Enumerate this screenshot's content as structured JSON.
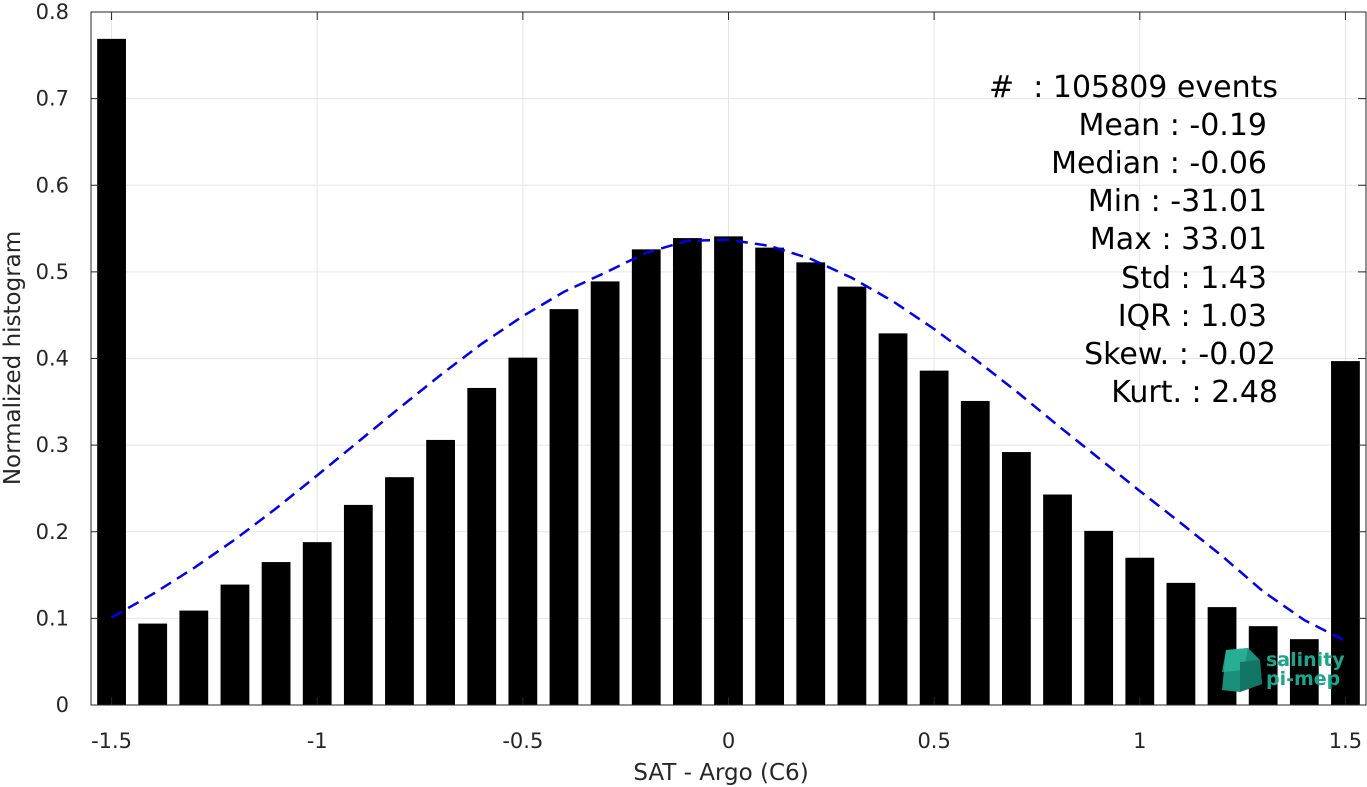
{
  "chart_data": {
    "type": "bar",
    "xlabel": "SAT - Argo (C6)",
    "ylabel": "Normalized histogram",
    "xlim": [
      -1.55,
      1.55
    ],
    "ylim": [
      0,
      0.8
    ],
    "grid": true,
    "x_ticks": [
      -1.5,
      -1,
      -0.5,
      0,
      0.5,
      1,
      1.5
    ],
    "x_tick_labels": [
      "-1.5",
      "-1",
      "-0.5",
      "0",
      "0.5",
      "1",
      "1.5"
    ],
    "y_ticks": [
      0,
      0.1,
      0.2,
      0.3,
      0.4,
      0.5,
      0.6,
      0.7,
      0.8
    ],
    "y_tick_labels": [
      "0",
      "0.1",
      "0.2",
      "0.3",
      "0.4",
      "0.5",
      "0.6",
      "0.7",
      "0.8"
    ],
    "bar_color": "#000000",
    "bars": {
      "x": [
        -1.5,
        -1.4,
        -1.3,
        -1.2,
        -1.1,
        -1.0,
        -0.9,
        -0.8,
        -0.7,
        -0.6,
        -0.5,
        -0.4,
        -0.3,
        -0.2,
        -0.1,
        0.0,
        0.1,
        0.2,
        0.3,
        0.4,
        0.5,
        0.6,
        0.7,
        0.8,
        0.9,
        1.0,
        1.1,
        1.2,
        1.3,
        1.4,
        1.5
      ],
      "values": [
        0.769,
        0.094,
        0.109,
        0.139,
        0.165,
        0.188,
        0.231,
        0.263,
        0.306,
        0.366,
        0.401,
        0.457,
        0.489,
        0.526,
        0.539,
        0.541,
        0.528,
        0.511,
        0.483,
        0.429,
        0.386,
        0.351,
        0.292,
        0.243,
        0.201,
        0.17,
        0.141,
        0.113,
        0.091,
        0.076,
        0.397
      ]
    },
    "fit_curve": {
      "style": "dashed",
      "color": "#0000ee",
      "x": [
        -1.5,
        -1.4,
        -1.3,
        -1.2,
        -1.1,
        -1.0,
        -0.9,
        -0.8,
        -0.7,
        -0.6,
        -0.5,
        -0.4,
        -0.3,
        -0.2,
        -0.1,
        0.0,
        0.1,
        0.2,
        0.3,
        0.4,
        0.5,
        0.6,
        0.7,
        0.8,
        0.9,
        1.0,
        1.1,
        1.2,
        1.3,
        1.4,
        1.5
      ],
      "y": [
        0.101,
        0.128,
        0.158,
        0.191,
        0.227,
        0.265,
        0.304,
        0.343,
        0.381,
        0.417,
        0.449,
        0.477,
        0.499,
        0.522,
        0.536,
        0.537,
        0.53,
        0.515,
        0.493,
        0.466,
        0.434,
        0.399,
        0.362,
        0.323,
        0.285,
        0.247,
        0.21,
        0.172,
        0.131,
        0.098,
        0.074
      ]
    },
    "stats": [
      "#  : 105809 events",
      "Mean : -0.19",
      "Median : -0.06",
      "Min : -31.01",
      "Max : 33.01",
      "Std : 1.43",
      "IQR : 1.03",
      "Skew. : -0.02",
      "Kurt. : 2.48"
    ],
    "logo": [
      "salinity",
      "pi-mep"
    ]
  }
}
